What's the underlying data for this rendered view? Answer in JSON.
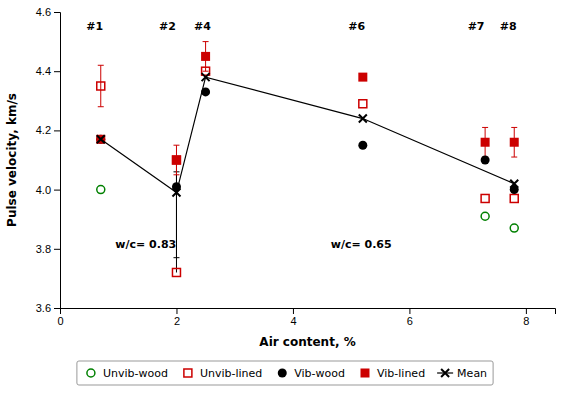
{
  "chart_data": {
    "type": "scatter",
    "xlabel": "Air content, %",
    "ylabel": "Pulse velocity, km/s",
    "xlim": [
      0,
      8.5
    ],
    "ylim": [
      3.6,
      4.6
    ],
    "xticks": [
      0,
      2,
      4,
      6,
      8
    ],
    "yticks": [
      3.6,
      3.8,
      {
        "value": 4.0,
        "label": "4.0"
      },
      4.2,
      4.4,
      4.6
    ],
    "grid": false,
    "legend": "bottom",
    "series": [
      {
        "name": "Unvib-wood",
        "color": "#008000",
        "marker": "open-circle",
        "x": [
          0.7,
          7.3,
          7.8
        ],
        "values": [
          4.0,
          3.91,
          3.87
        ]
      },
      {
        "name": "Unvib-lined",
        "color": "#cc0000",
        "marker": "open-square",
        "x": [
          0.7,
          2.0,
          2.5,
          5.2,
          7.3,
          7.8
        ],
        "values": [
          4.35,
          4.1,
          4.4,
          4.29,
          3.97,
          3.97
        ],
        "yerr": [
          0.07,
          null,
          null,
          null,
          null,
          null
        ],
        "low_outlier": {
          "x": 2.0,
          "y": 3.72
        }
      },
      {
        "name": "Vib-wood",
        "color": "#000000",
        "marker": "circle",
        "x": [
          0.7,
          2.0,
          2.5,
          5.2,
          7.3,
          7.8
        ],
        "values": [
          4.17,
          4.01,
          4.33,
          4.15,
          4.1,
          4.0
        ],
        "yerr_minus": [
          null,
          0.24,
          null,
          null,
          null,
          null
        ],
        "yerr_plus": [
          null,
          0.05,
          null,
          null,
          null,
          null
        ]
      },
      {
        "name": "Vib-lined",
        "color": "#cc0000",
        "marker": "square",
        "x": [
          0.7,
          2.0,
          2.5,
          5.2,
          7.3,
          7.8
        ],
        "values": [
          4.17,
          4.1,
          4.45,
          4.38,
          4.16,
          4.16
        ],
        "yerr": [
          null,
          0.05,
          0.05,
          null,
          0.05,
          0.05
        ]
      },
      {
        "name": "Mean",
        "type": "line",
        "color": "#000000",
        "marker": "x",
        "x": [
          0.7,
          2.0,
          2.5,
          5.2,
          7.8
        ],
        "values": [
          4.17,
          3.99,
          4.38,
          4.24,
          4.02
        ]
      }
    ],
    "annotations": [
      {
        "text": "#1",
        "x": 0.45,
        "y": 4.565
      },
      {
        "text": "#2",
        "x": 1.7,
        "y": 4.565
      },
      {
        "text": "#4",
        "x": 2.3,
        "y": 4.565
      },
      {
        "text": "#6",
        "x": 4.95,
        "y": 4.565
      },
      {
        "text": "#7",
        "x": 7.0,
        "y": 4.565
      },
      {
        "text": "#8",
        "x": 7.55,
        "y": 4.565
      },
      {
        "text": "w/c= 0.83",
        "x": 0.95,
        "y": 3.83
      },
      {
        "text": "w/c= 0.65",
        "x": 4.65,
        "y": 3.83
      }
    ]
  }
}
